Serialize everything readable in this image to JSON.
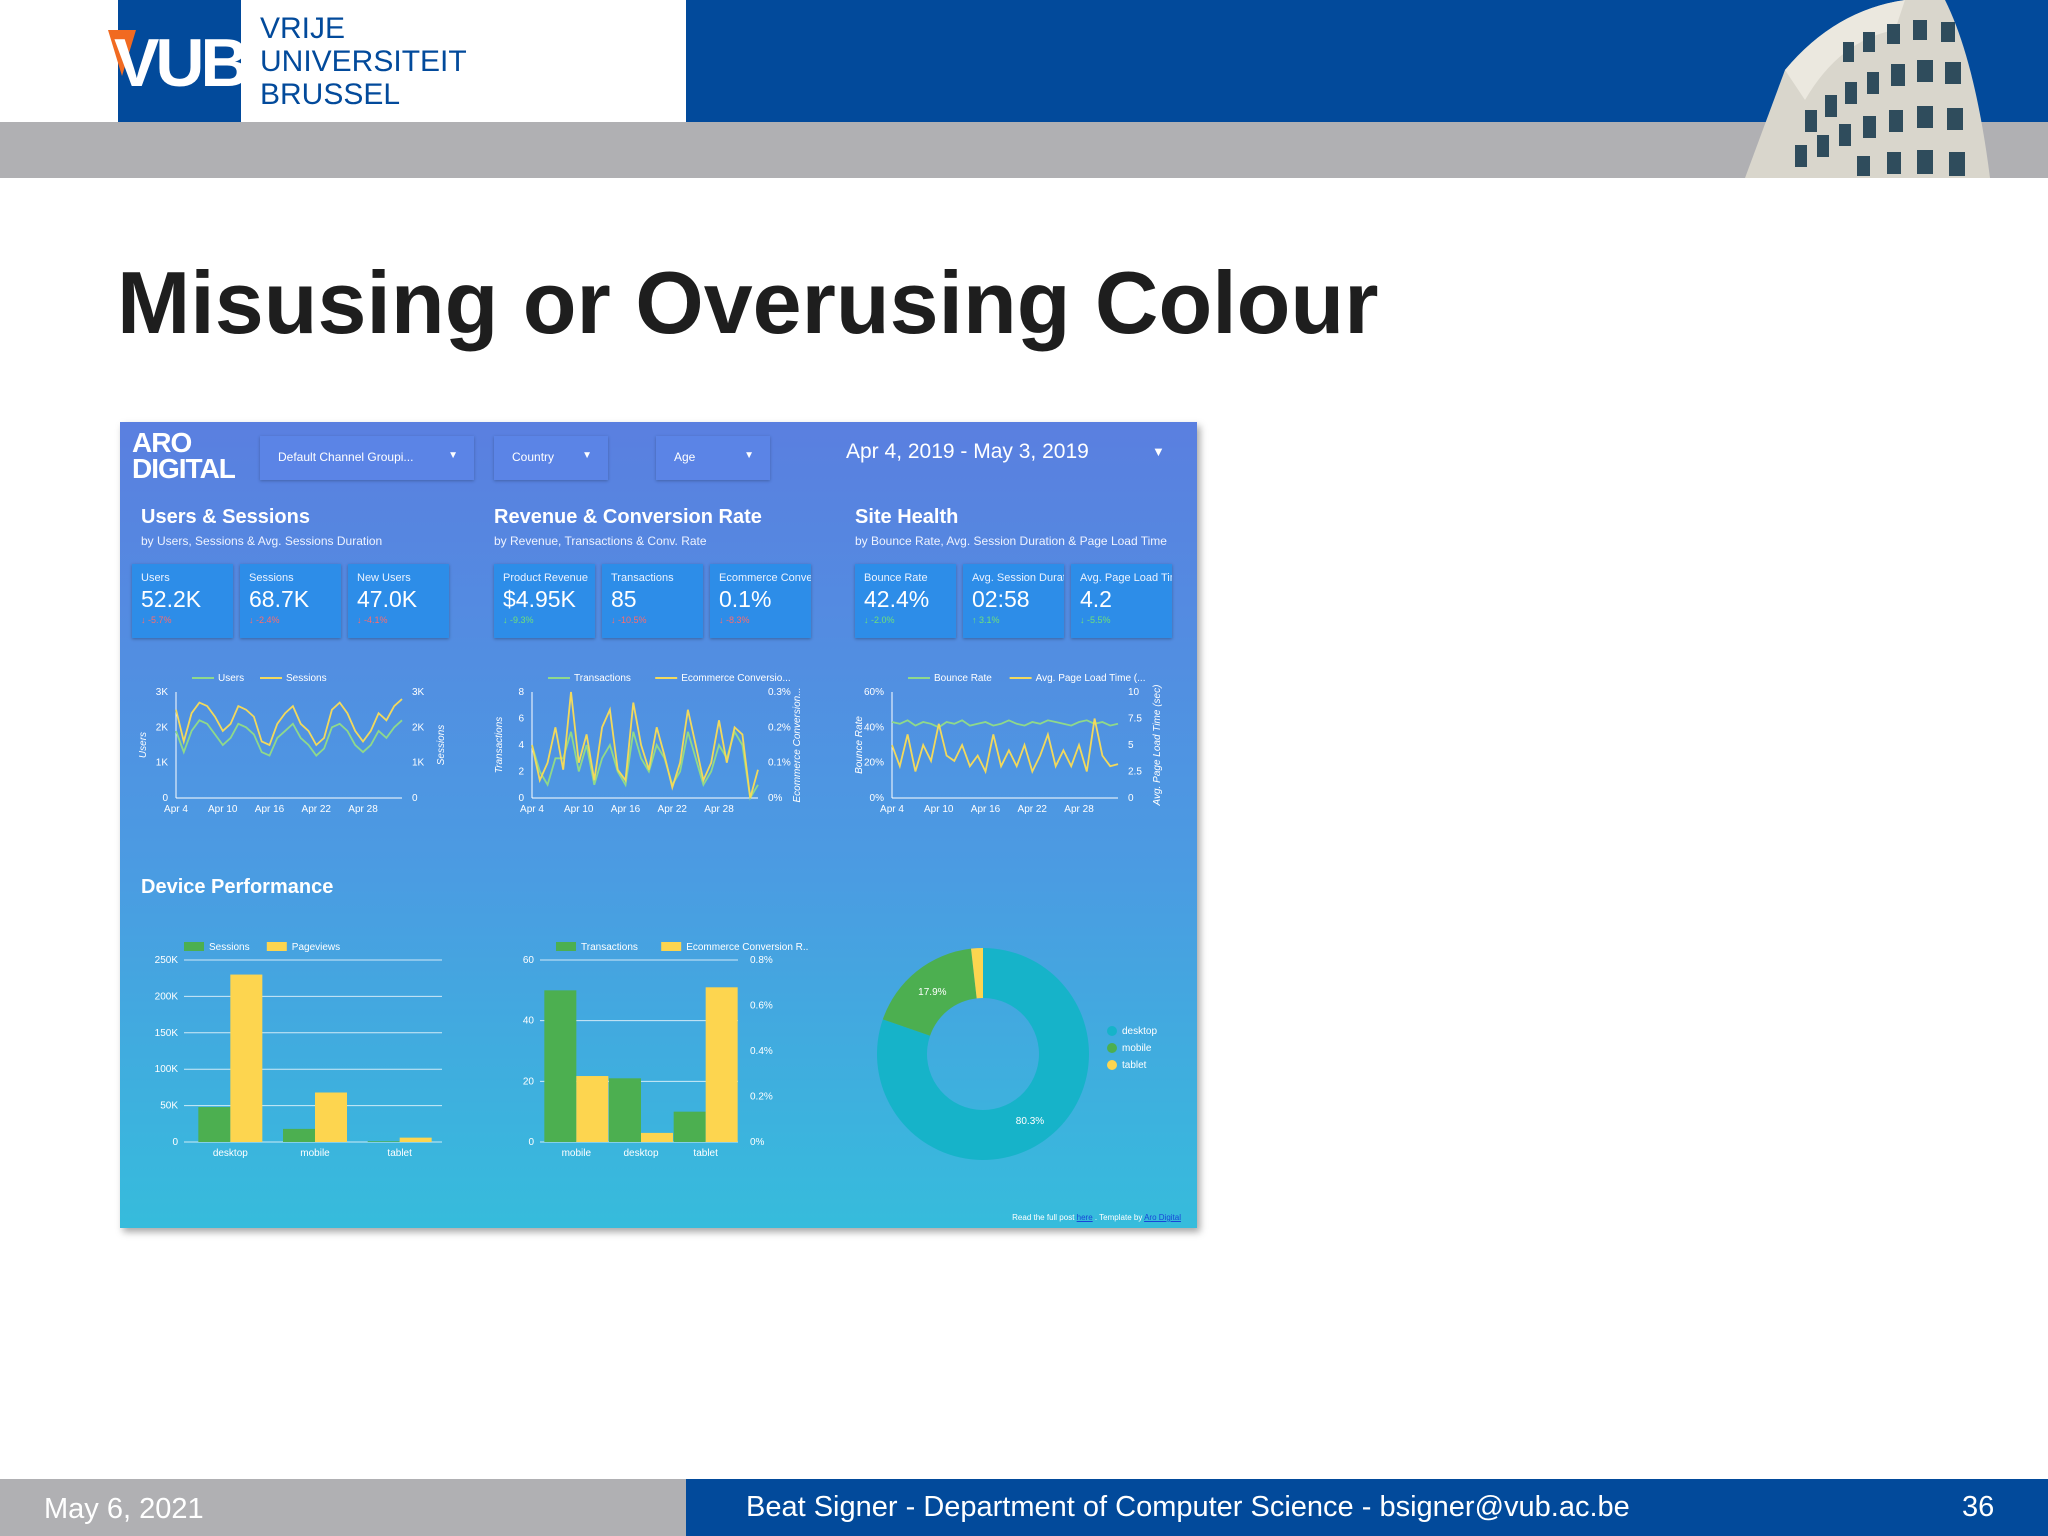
{
  "header": {
    "logo_text": "VUB",
    "university_lines": [
      "VRIJE",
      "UNIVERSITEIT",
      "BRUSSEL"
    ]
  },
  "slide_title": "Misusing or Overusing Colour",
  "dashboard": {
    "brand_lines": [
      "ARO",
      "DIGITAL"
    ],
    "filters": [
      "Default Channel Groupi...",
      "Country",
      "Age"
    ],
    "date_range": "Apr 4, 2019 - May 3, 2019",
    "sections": [
      {
        "title": "Users & Sessions",
        "subtitle": "by Users, Sessions & Avg. Sessions Duration"
      },
      {
        "title": "Revenue & Conversion Rate",
        "subtitle": "by Revenue, Transactions & Conv. Rate"
      },
      {
        "title": "Site Health",
        "subtitle": "by Bounce Rate, Avg. Session Duration & Page Load Time"
      }
    ],
    "scorecards": [
      {
        "label": "Users",
        "value": "52.2K",
        "delta": "↓ -5.7%",
        "trend": "neg"
      },
      {
        "label": "Sessions",
        "value": "68.7K",
        "delta": "↓ -2.4%",
        "trend": "neg"
      },
      {
        "label": "New Users",
        "value": "47.0K",
        "delta": "↓ -4.1%",
        "trend": "neg"
      },
      {
        "label": "Product Revenue",
        "value": "$4.95K",
        "delta": "↓ -9.3%",
        "trend": "pos"
      },
      {
        "label": "Transactions",
        "value": "85",
        "delta": "↓ -10.5%",
        "trend": "neg"
      },
      {
        "label": "Ecommerce Conversion Rate",
        "value": "0.1%",
        "delta": "↓ -8.3%",
        "trend": "neg"
      },
      {
        "label": "Bounce Rate",
        "value": "42.4%",
        "delta": "↓ -2.0%",
        "trend": "pos"
      },
      {
        "label": "Avg. Session Duration",
        "value": "02:58",
        "delta": "↑ 3.1%",
        "trend": "pos"
      },
      {
        "label": "Avg. Page Load Time (sec)",
        "value": "4.2",
        "delta": "↓ -5.5%",
        "trend": "pos"
      }
    ],
    "device_title": "Device Performance",
    "credit": {
      "prefix": "Read the full post ",
      "link1": "here",
      "middle": " . Template by ",
      "link2": "Aro Digital"
    },
    "colors": {
      "green": "#4caf50",
      "yellow": "#fdd54f",
      "teal": "#16b3c9",
      "line_green": "#8fd98a",
      "line_yellow": "#f2d95c"
    }
  },
  "chart_data": [
    {
      "type": "line",
      "legend": [
        "Users",
        "Sessions"
      ],
      "x_ticks": [
        "Apr 4",
        "Apr 10",
        "Apr 16",
        "Apr 22",
        "Apr 28"
      ],
      "y_left_ticks": [
        "0",
        "1K",
        "2K",
        "3K"
      ],
      "y_right_ticks": [
        "0",
        "1K",
        "2K",
        "3K"
      ],
      "ylabel_left": "Users",
      "ylabel_right": "Sessions",
      "series": [
        {
          "name": "Users",
          "values": [
            1900,
            1300,
            1900,
            2200,
            2100,
            1800,
            1500,
            1700,
            2100,
            2000,
            1800,
            1300,
            1200,
            1700,
            1900,
            2100,
            1700,
            1500,
            1200,
            1400,
            2000,
            2100,
            1900,
            1500,
            1300,
            1500,
            1900,
            1700,
            2000,
            2200
          ]
        },
        {
          "name": "Sessions",
          "values": [
            2500,
            1600,
            2400,
            2700,
            2600,
            2300,
            1900,
            2100,
            2600,
            2500,
            2300,
            1600,
            1500,
            2100,
            2400,
            2600,
            2100,
            1900,
            1500,
            1700,
            2500,
            2700,
            2400,
            1900,
            1600,
            1900,
            2400,
            2200,
            2600,
            2800
          ]
        }
      ]
    },
    {
      "type": "line",
      "legend": [
        "Transactions",
        "Ecommerce Conversio..."
      ],
      "x_ticks": [
        "Apr 4",
        "Apr 10",
        "Apr 16",
        "Apr 22",
        "Apr 28"
      ],
      "y_left_ticks": [
        "0",
        "2",
        "4",
        "6",
        "8"
      ],
      "y_right_ticks": [
        "0%",
        "0.1%",
        "0.2%",
        "0.3%"
      ],
      "ylabel_left": "Transactions",
      "ylabel_right": "Ecommerce Conversion...",
      "series": [
        {
          "name": "Transactions",
          "values": [
            4,
            2,
            1,
            3,
            3,
            5,
            2,
            4,
            1,
            3,
            4,
            2,
            1,
            5,
            3,
            2,
            4,
            3,
            1,
            2,
            5,
            3,
            1,
            2,
            4,
            3,
            5,
            4,
            0,
            1
          ]
        },
        {
          "name": "Ecommerce Conversio...",
          "values": [
            0.15,
            0.05,
            0.1,
            0.2,
            0.08,
            0.3,
            0.1,
            0.18,
            0.05,
            0.2,
            0.25,
            0.08,
            0.05,
            0.27,
            0.15,
            0.08,
            0.2,
            0.12,
            0.03,
            0.1,
            0.25,
            0.15,
            0.05,
            0.1,
            0.22,
            0.1,
            0.2,
            0.18,
            0.0,
            0.08
          ]
        }
      ]
    },
    {
      "type": "line",
      "legend": [
        "Bounce Rate",
        "Avg. Page Load Time (..."
      ],
      "x_ticks": [
        "Apr 4",
        "Apr 10",
        "Apr 16",
        "Apr 22",
        "Apr 28"
      ],
      "y_left_ticks": [
        "0%",
        "20%",
        "40%",
        "60%"
      ],
      "y_right_ticks": [
        "0",
        "2.5",
        "5",
        "7.5",
        "10"
      ],
      "ylabel_left": "Bounce Rate",
      "ylabel_right": "Avg. Page Load Time (sec)",
      "series": [
        {
          "name": "Bounce Rate",
          "values": [
            43,
            42,
            44,
            41,
            43,
            42,
            40,
            43,
            42,
            44,
            41,
            42,
            43,
            41,
            42,
            44,
            42,
            41,
            43,
            42,
            44,
            43,
            42,
            41,
            43,
            44,
            42,
            43,
            41,
            42
          ]
        },
        {
          "name": "Avg. Page Load Time (...",
          "values": [
            5,
            3,
            6,
            2.5,
            5,
            3.5,
            7,
            4,
            3.5,
            5,
            3,
            4,
            2.5,
            6,
            3,
            4.5,
            3,
            5,
            2.5,
            4,
            6,
            3,
            4.5,
            3,
            5,
            2.5,
            7.5,
            4,
            3,
            3.2
          ]
        }
      ]
    },
    {
      "type": "bar",
      "legend": [
        "Sessions",
        "Pageviews"
      ],
      "categories": [
        "desktop",
        "mobile",
        "tablet"
      ],
      "y_ticks": [
        "0",
        "50K",
        "100K",
        "150K",
        "200K",
        "250K"
      ],
      "ylim": [
        0,
        250000
      ],
      "series": [
        {
          "name": "Sessions",
          "values": [
            48000,
            18000,
            1000
          ]
        },
        {
          "name": "Pageviews",
          "values": [
            230000,
            68000,
            6000
          ]
        }
      ]
    },
    {
      "type": "bar",
      "legend": [
        "Transactions",
        "Ecommerce Conversion R..."
      ],
      "categories": [
        "mobile",
        "desktop",
        "tablet"
      ],
      "y_left_ticks": [
        "0",
        "20",
        "40",
        "60"
      ],
      "y_right_ticks": [
        "0%",
        "0.2%",
        "0.4%",
        "0.6%",
        "0.8%"
      ],
      "ylim_left": [
        0,
        60
      ],
      "ylim_right": [
        0,
        0.8
      ],
      "series": [
        {
          "name": "Transactions",
          "axis": "left",
          "values": [
            50,
            21,
            10
          ]
        },
        {
          "name": "Ecommerce Conversion R...",
          "axis": "right",
          "values": [
            0.29,
            0.04,
            0.68
          ]
        }
      ]
    },
    {
      "type": "pie",
      "donut": true,
      "labels": [
        "desktop",
        "mobile",
        "tablet"
      ],
      "values": [
        80.3,
        17.9,
        1.8
      ],
      "slice_labels": [
        "80.3%",
        "17.9%",
        ""
      ]
    }
  ],
  "footer": {
    "date": "May 6, 2021",
    "center": "Beat Signer - Department of Computer Science - bsigner@vub.ac.be",
    "page": "36"
  }
}
